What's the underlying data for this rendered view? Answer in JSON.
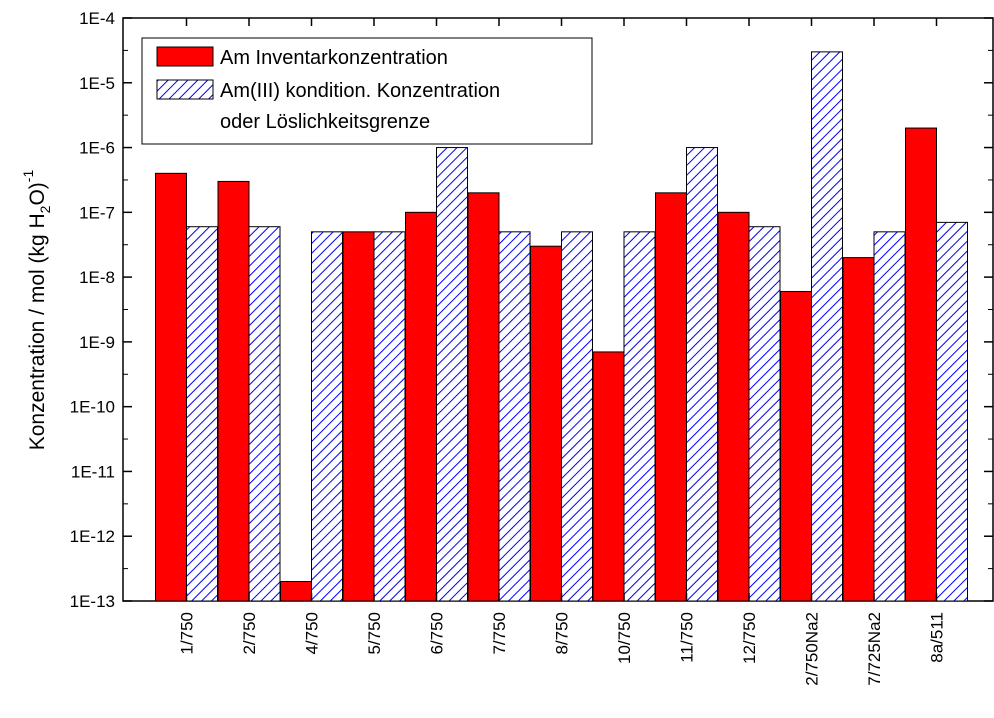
{
  "chart_data": {
    "type": "bar",
    "y_scale": "log",
    "ylim": [
      1e-13,
      0.0001
    ],
    "y_ticks": [
      "1E-4",
      "1E-5",
      "1E-6",
      "1E-7",
      "1E-8",
      "1E-9",
      "1E-10",
      "1E-11",
      "1E-12",
      "1E-13"
    ],
    "ylabel": {
      "main": "Konzentration / mol (kg H",
      "sub": "2",
      "after": "O)",
      "sup": "-1"
    },
    "categories": [
      "1/750",
      "2/750",
      "4/750",
      "5/750",
      "6/750",
      "7/750",
      "8/750",
      "10/750",
      "11/750",
      "12/750",
      "2/750Na2",
      "7/725Na2",
      "8a/511"
    ],
    "series": [
      {
        "name": "Am Inventarkonzentration",
        "color": "#ff0000",
        "pattern": "solid",
        "values": [
          4e-07,
          3e-07,
          2e-13,
          5e-08,
          1e-07,
          2e-07,
          3e-08,
          7e-10,
          2e-07,
          1e-07,
          6e-09,
          2e-08,
          2e-06
        ]
      },
      {
        "name": "Am(III) kondition. Konzentration",
        "name_line2": "oder Löslichkeitsgrenze",
        "color": "#0000ff",
        "pattern": "diagonal-hatch",
        "values": [
          6e-08,
          6e-08,
          5e-08,
          5e-08,
          1e-06,
          5e-08,
          5e-08,
          5e-08,
          1e-06,
          6e-08,
          3e-05,
          5e-08,
          7e-08
        ]
      }
    ],
    "legend_position": "top-left",
    "grid": false
  }
}
